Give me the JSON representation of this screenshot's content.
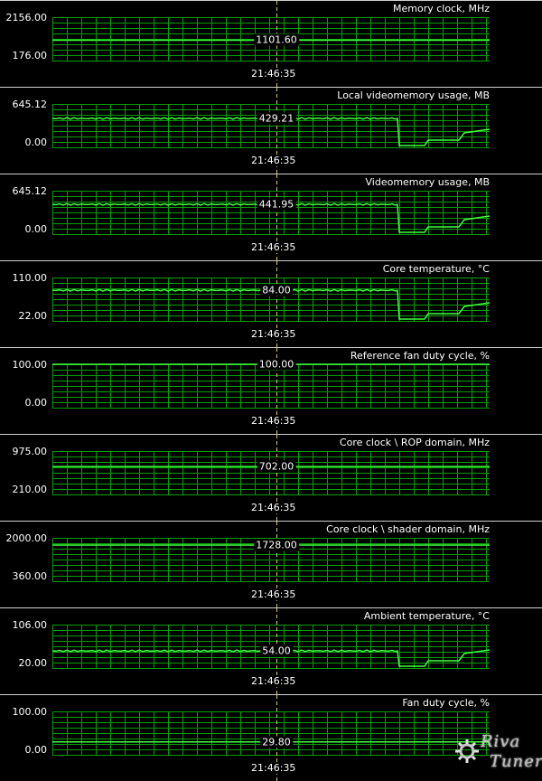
{
  "cursor_time": "21:46:35",
  "colors": {
    "grid": "#00a000",
    "line": "#40ff40",
    "cursor": "#d8c870",
    "background": "#000000"
  },
  "panels": [
    {
      "title": "Memory clock, MHz",
      "ymax": "2156.00",
      "ymin": "176.00",
      "current": "1101.60",
      "trace": false,
      "cursor_fraction": 0.47
    },
    {
      "title": "Local videomemory usage, MB",
      "ymax": "645.12",
      "ymin": "0.00",
      "current": "429.21",
      "trace": true,
      "cursor_fraction": 0.666
    },
    {
      "title": "Videomemory usage, MB",
      "ymax": "645.12",
      "ymin": "0.00",
      "current": "441.95",
      "trace": true,
      "cursor_fraction": 0.685
    },
    {
      "title": "Core temperature, °C",
      "ymax": "110.00",
      "ymin": "22.00",
      "current": "84.00",
      "trace": true,
      "cursor_fraction": 0.705
    },
    {
      "title": "Reference fan duty cycle, %",
      "ymax": "100.00",
      "ymin": "0.00",
      "current": "100.00",
      "trace": false,
      "cursor_fraction": 1.0
    },
    {
      "title": "Core clock \\ ROP domain, MHz",
      "ymax": "975.00",
      "ymin": "210.00",
      "current": "702.00",
      "trace": false,
      "cursor_fraction": 0.643
    },
    {
      "title": "Core clock \\ shader domain, MHz",
      "ymax": "2000.00",
      "ymin": "360.00",
      "current": "1728.00",
      "trace": false,
      "cursor_fraction": 0.834
    },
    {
      "title": "Ambient temperature, °C",
      "ymax": "106.00",
      "ymin": "20.00",
      "current": "54.00",
      "trace": true,
      "cursor_fraction": 0.395
    },
    {
      "title": "Fan duty cycle, %",
      "ymax": "100.00",
      "ymin": "0.00",
      "current": "29.80",
      "trace": false,
      "cursor_fraction": 0.298
    }
  ],
  "watermark": {
    "line1": "Riva",
    "line2": "Tuner"
  }
}
